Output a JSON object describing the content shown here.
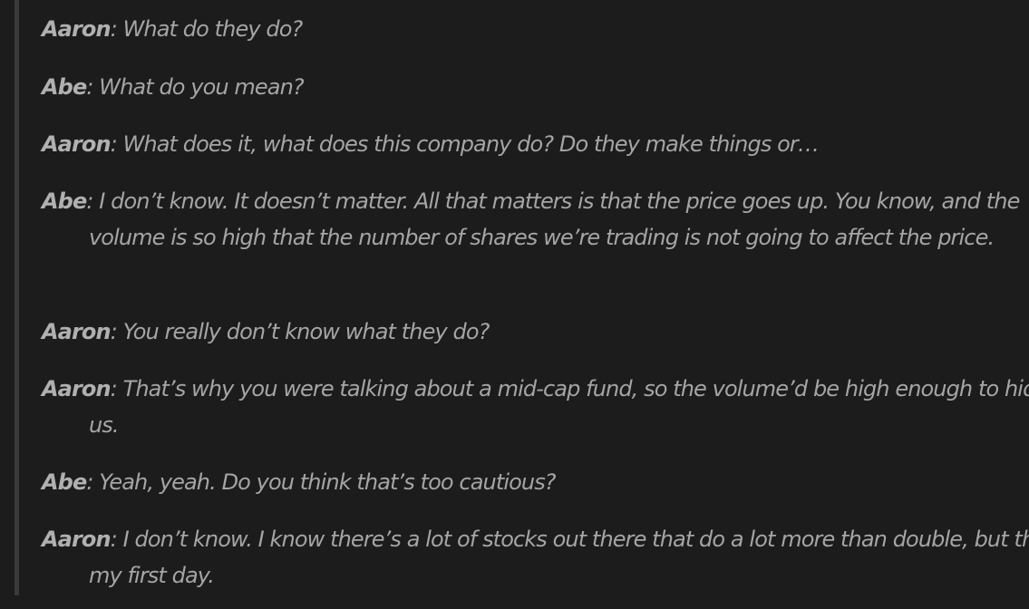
{
  "dialogue": [
    {
      "speaker": "Aaron",
      "text": ": What do they do?"
    },
    {
      "speaker": "Abe",
      "text": ": What do you mean?"
    },
    {
      "speaker": "Aaron",
      "text": ": What does it, what does this company do? Do they make things or…"
    },
    {
      "speaker": "Abe",
      "text": ": I don’t know. It doesn’t matter. All that matters is that the price goes up. You know, and the volume is so high that the number of shares we’re trading is not going to affect the price."
    },
    {
      "speaker": "Aaron",
      "text": ": You really don’t know what they do?"
    },
    {
      "speaker": "Aaron",
      "text": ": That’s why you were talking about a mid-cap fund, so the volume’d be high enough to hide us."
    },
    {
      "speaker": "Abe",
      "text": ": Yeah, yeah. Do you think that’s too cautious?"
    },
    {
      "speaker": "Aaron",
      "text": ": I don’t know. I know there’s a lot of stocks out there that do a lot more than double, but this is my first day."
    }
  ]
}
